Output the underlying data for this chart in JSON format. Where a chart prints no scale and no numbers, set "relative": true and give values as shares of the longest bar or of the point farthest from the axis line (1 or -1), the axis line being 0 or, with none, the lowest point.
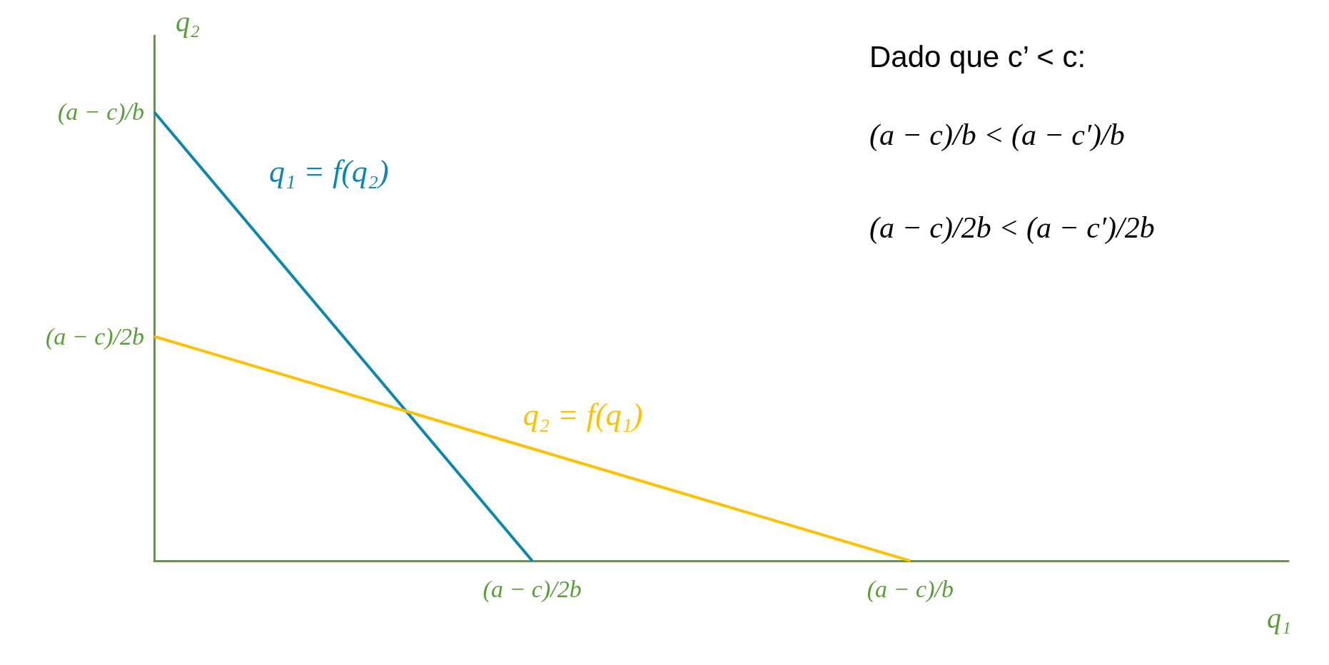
{
  "chart_data": {
    "type": "line",
    "xlabel": "q₁",
    "ylabel": "q₂",
    "relative": true,
    "categories": [
      null,
      "(a − c)/2b",
      "(a − c)/b",
      null
    ],
    "series": [
      {
        "name": "q₁ = f(q₂)",
        "color": "#0e87b0",
        "values": [
          1,
          0,
          null,
          null
        ]
      },
      {
        "name": "q₂ = f(q₁)",
        "color": "#ffc000",
        "values": [
          0.5,
          0.25,
          0,
          null
        ]
      }
    ],
    "annotations": [
      "(a − c)/b",
      "(a − c)/2b",
      "Dado que c’ < c:",
      "(a − c)/b < (a − c′)/b",
      "(a − c)/2b < (a − c′)/2b"
    ],
    "grid": false,
    "legend": false,
    "marker": "none",
    "line_style": "solid"
  }
}
